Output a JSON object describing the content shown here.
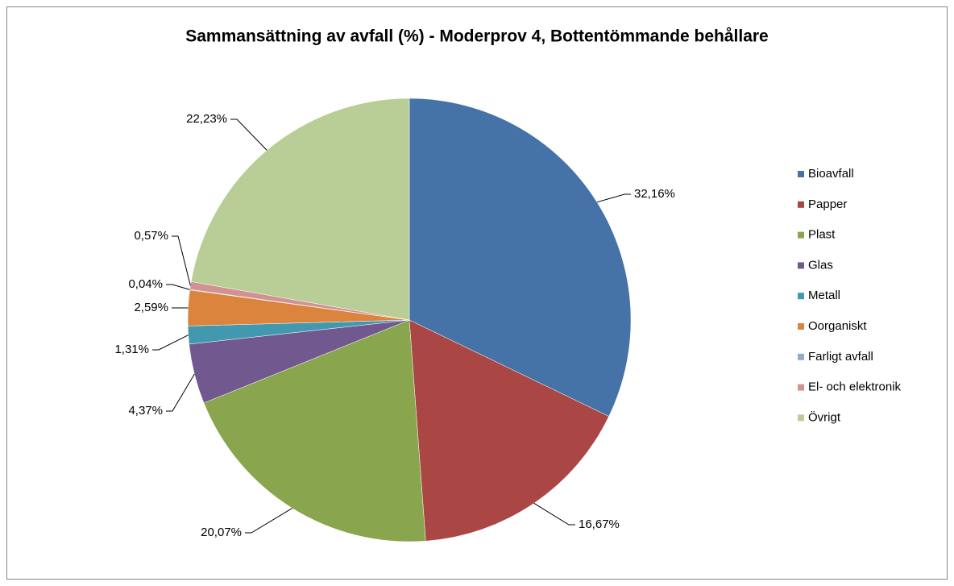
{
  "chart_data": {
    "type": "pie",
    "title": "Sammansättning av avfall (%) - Moderprov 4, Bottentömmande behållare",
    "categories": [
      "Bioavfall",
      "Papper",
      "Plast",
      "Glas",
      "Metall",
      "Oorganiskt",
      "Farligt avfall",
      "El- och elektronik",
      "Övrigt"
    ],
    "values": [
      32.16,
      16.67,
      20.07,
      4.37,
      1.31,
      2.59,
      0.04,
      0.57,
      22.23
    ],
    "value_labels": [
      "32,16%",
      "16,67%",
      "20,07%",
      "4,37%",
      "1,31%",
      "2,59%",
      "0,04%",
      "0,57%",
      "22,23%"
    ],
    "colors": [
      "#4572a7",
      "#aa4643",
      "#89a54e",
      "#71588f",
      "#4198af",
      "#db843d",
      "#93a9cf",
      "#d19392",
      "#b9cd96"
    ],
    "legend": "right"
  }
}
